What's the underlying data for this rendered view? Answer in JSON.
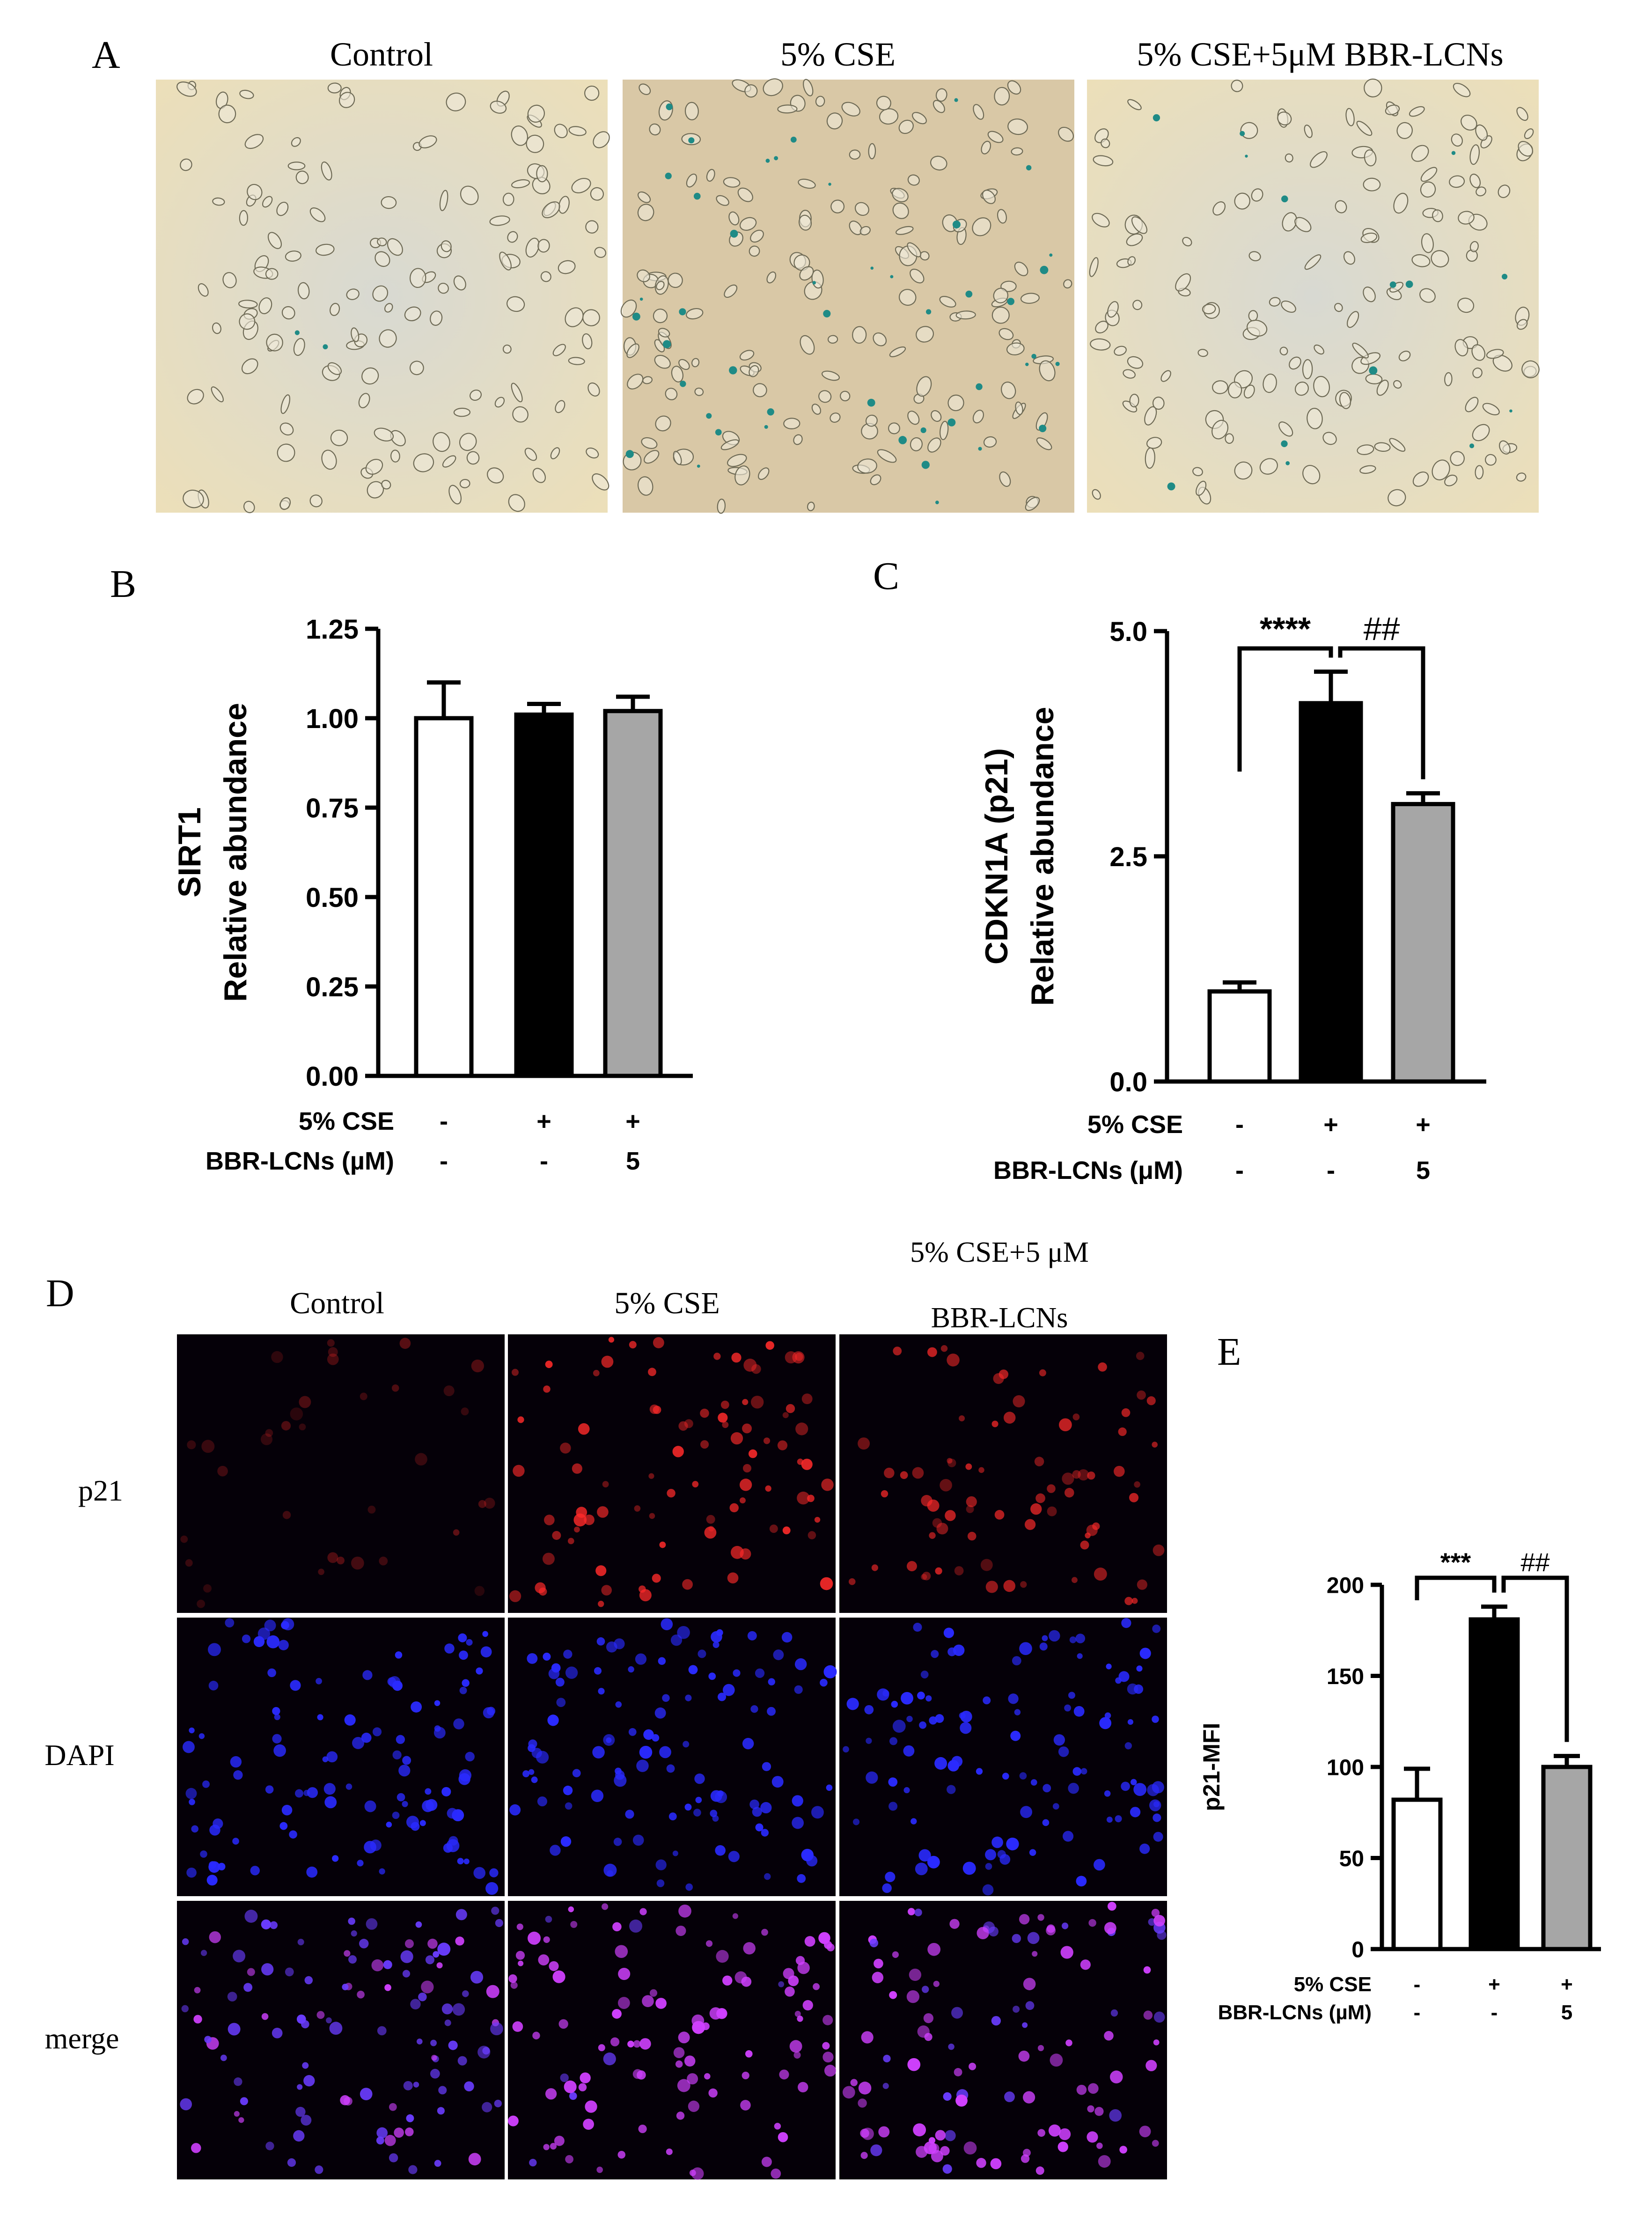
{
  "panel_letters": {
    "a": "A",
    "b": "B",
    "c": "C",
    "d": "D",
    "e": "E"
  },
  "panel_a": {
    "titles": [
      "Control",
      "5% CSE",
      "5% CSE+5μM BBR-LCNs"
    ]
  },
  "panel_d": {
    "titles": [
      "Control",
      "5% CSE",
      "5% CSE+5 μM",
      "BBR-LCNs"
    ],
    "rows": [
      "p21",
      "DAPI",
      "merge"
    ]
  },
  "treatment_rows": {
    "cse_label": "5% CSE",
    "cse_values": [
      "-",
      "+",
      "+"
    ],
    "bbr_label_c": "BBR-LCNs (μM)",
    "bbr_label_b": "BBR-LCNs (µM)",
    "bbr_values": [
      "-",
      "-",
      "5"
    ]
  },
  "colors": {
    "control": "#ffffff",
    "cse": "#000000",
    "cse_bbr": "#a6a6a6",
    "p21_red": "#ff2a2a",
    "dapi_blue": "#2a2aff",
    "merge_magenta": "#d040ff",
    "sa_bgal_background": "#ece2c4",
    "sa_bgal_stain": "#1f8b86"
  },
  "chart_data": [
    {
      "panel": "B",
      "type": "bar",
      "categories": [
        "Control",
        "5% CSE",
        "5% CSE+5μM BBR-LCNs"
      ],
      "values": [
        1.0,
        1.01,
        1.02
      ],
      "errors": [
        0.1,
        0.03,
        0.04
      ],
      "ylabel_lines": [
        "SIRT1",
        "Relative abundance"
      ],
      "ylim": [
        0,
        1.25
      ],
      "yticks": [
        "0.00",
        "0.25",
        "0.50",
        "0.75",
        "1.00",
        "1.25"
      ],
      "ytick_values": [
        0,
        0.25,
        0.5,
        0.75,
        1.0,
        1.25
      ],
      "significance": []
    },
    {
      "panel": "C",
      "type": "bar",
      "categories": [
        "Control",
        "5% CSE",
        "5% CSE+5μM BBR-LCNs"
      ],
      "values": [
        1.0,
        4.2,
        3.08
      ],
      "errors": [
        0.1,
        0.35,
        0.12
      ],
      "ylabel_lines": [
        "CDKN1A (p21)",
        "Relative abundance"
      ],
      "ylim": [
        0,
        5.0
      ],
      "yticks": [
        "0.0",
        "2.5",
        "5.0"
      ],
      "ytick_values": [
        0,
        2.5,
        5.0
      ],
      "significance": [
        {
          "from": 0,
          "to": 1,
          "label": "****"
        },
        {
          "from": 1,
          "to": 2,
          "label": "##"
        }
      ]
    },
    {
      "panel": "E",
      "type": "bar",
      "categories": [
        "Control",
        "5% CSE",
        "5% CSE+5μM BBR-LCNs"
      ],
      "values": [
        82,
        181,
        100
      ],
      "errors": [
        17,
        7,
        6
      ],
      "ylabel_lines": [
        "p21-MFI"
      ],
      "ylim": [
        0,
        200
      ],
      "yticks": [
        "0",
        "50",
        "100",
        "150",
        "200"
      ],
      "ytick_values": [
        0,
        50,
        100,
        150,
        200
      ],
      "significance": [
        {
          "from": 0,
          "to": 1,
          "label": "***"
        },
        {
          "from": 1,
          "to": 2,
          "label": "##"
        }
      ]
    }
  ]
}
